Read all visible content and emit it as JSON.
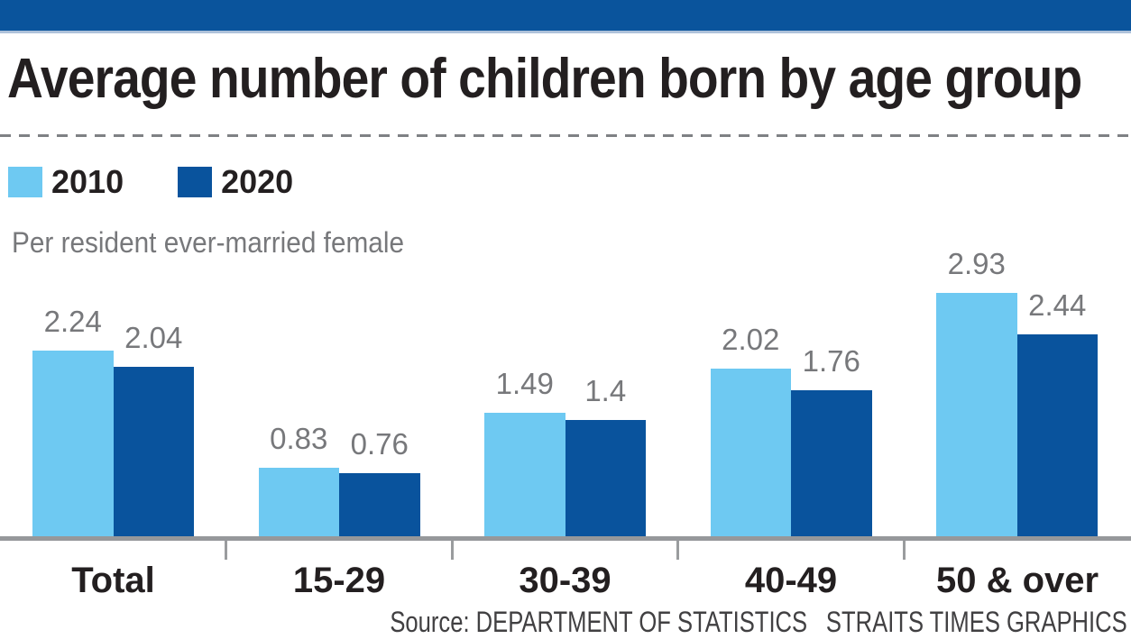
{
  "chart_data": {
    "type": "bar",
    "title": "Average number of children born by age group",
    "subtitle": "Per resident ever-married female",
    "categories": [
      "Total",
      "15-29",
      "30-39",
      "40-49",
      "50 & over"
    ],
    "series": [
      {
        "name": "2010",
        "color": "#6EC9F2",
        "values": [
          2.24,
          0.83,
          1.49,
          2.02,
          2.93
        ]
      },
      {
        "name": "2020",
        "color": "#09539D",
        "values": [
          2.04,
          0.76,
          1.4,
          1.76,
          2.44
        ]
      }
    ],
    "ylim": [
      0,
      2.93
    ],
    "value_labels": true,
    "legend_position": "top-left",
    "gridlines": false,
    "axis": "baseline-only"
  },
  "source": {
    "label": "Source: DEPARTMENT OF STATISTICS",
    "credit": "STRAITS TIMES GRAPHICS"
  },
  "colors": {
    "banner": "#0A549C",
    "banner_edge": "#AEC2DA",
    "title_text": "#231F20",
    "muted_text": "#77787B",
    "source_text": "#414042",
    "baseline": "#96989B",
    "divider": "#7F8184",
    "series_2010": "#6EC9F2",
    "series_2020": "#09539D"
  }
}
